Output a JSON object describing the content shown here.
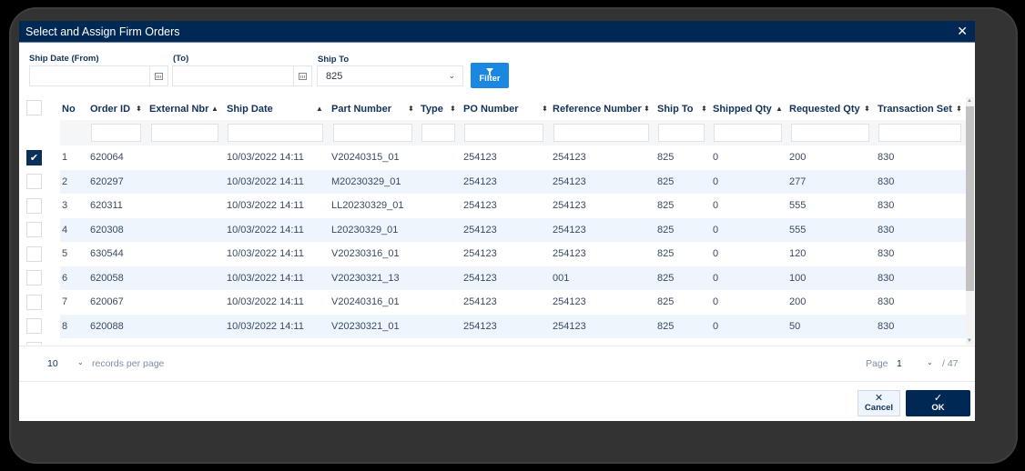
{
  "dialog": {
    "title": "Select and Assign Firm Orders",
    "close_icon": "close-icon"
  },
  "filters": {
    "ship_date_from_label": "Ship Date (From)",
    "ship_date_from_value": "",
    "ship_date_to_label": "(To)",
    "ship_date_to_value": "",
    "ship_to_label": "Ship To",
    "ship_to_value": "825",
    "filter_button_label": "Filter"
  },
  "table": {
    "columns": [
      {
        "label": "No",
        "sort": ""
      },
      {
        "label": "Order ID",
        "sort": "both"
      },
      {
        "label": "External Nbr",
        "sort": "asc"
      },
      {
        "label": "Ship Date",
        "sort": "asc"
      },
      {
        "label": "Part Number",
        "sort": "both"
      },
      {
        "label": "Type",
        "sort": "both"
      },
      {
        "label": "PO Number",
        "sort": "both"
      },
      {
        "label": "Reference Number",
        "sort": "both"
      },
      {
        "label": "Ship To",
        "sort": "both"
      },
      {
        "label": "Shipped Qty",
        "sort": "asc"
      },
      {
        "label": "Requested Qty",
        "sort": "both"
      },
      {
        "label": "Transaction Set",
        "sort": "both"
      }
    ],
    "rows": [
      {
        "checked": true,
        "no": "1",
        "order_id": "620064",
        "external_nbr": "",
        "ship_date": "10/03/2022 14:11",
        "part_number": "V20240315_01",
        "type": "",
        "po_number": "254123",
        "reference_number": "254123",
        "ship_to": "825",
        "shipped_qty": "0",
        "requested_qty": "200",
        "transaction_set": "830"
      },
      {
        "checked": false,
        "no": "2",
        "order_id": "620297",
        "external_nbr": "",
        "ship_date": "10/03/2022 14:11",
        "part_number": "M20230329_01",
        "type": "",
        "po_number": "254123",
        "reference_number": "254123",
        "ship_to": "825",
        "shipped_qty": "0",
        "requested_qty": "277",
        "transaction_set": "830"
      },
      {
        "checked": false,
        "no": "3",
        "order_id": "620311",
        "external_nbr": "",
        "ship_date": "10/03/2022 14:11",
        "part_number": "LL20230329_01",
        "type": "",
        "po_number": "254123",
        "reference_number": "254123",
        "ship_to": "825",
        "shipped_qty": "0",
        "requested_qty": "555",
        "transaction_set": "830"
      },
      {
        "checked": false,
        "no": "4",
        "order_id": "620308",
        "external_nbr": "",
        "ship_date": "10/03/2022 14:11",
        "part_number": "L20230329_01",
        "type": "",
        "po_number": "254123",
        "reference_number": "254123",
        "ship_to": "825",
        "shipped_qty": "0",
        "requested_qty": "555",
        "transaction_set": "830"
      },
      {
        "checked": false,
        "no": "5",
        "order_id": "630544",
        "external_nbr": "",
        "ship_date": "10/03/2022 14:11",
        "part_number": "V20230316_01",
        "type": "",
        "po_number": "254123",
        "reference_number": "254123",
        "ship_to": "825",
        "shipped_qty": "0",
        "requested_qty": "120",
        "transaction_set": "830"
      },
      {
        "checked": false,
        "no": "6",
        "order_id": "620058",
        "external_nbr": "",
        "ship_date": "10/03/2022 14:11",
        "part_number": "V20230321_13",
        "type": "",
        "po_number": "254123",
        "reference_number": "001",
        "ship_to": "825",
        "shipped_qty": "0",
        "requested_qty": "100",
        "transaction_set": "830"
      },
      {
        "checked": false,
        "no": "7",
        "order_id": "620067",
        "external_nbr": "",
        "ship_date": "10/03/2022 14:11",
        "part_number": "V20240316_01",
        "type": "",
        "po_number": "254123",
        "reference_number": "254123",
        "ship_to": "825",
        "shipped_qty": "0",
        "requested_qty": "200",
        "transaction_set": "830"
      },
      {
        "checked": false,
        "no": "8",
        "order_id": "620088",
        "external_nbr": "",
        "ship_date": "10/03/2022 14:11",
        "part_number": "V20230321_01",
        "type": "",
        "po_number": "254123",
        "reference_number": "254123",
        "ship_to": "825",
        "shipped_qty": "0",
        "requested_qty": "50",
        "transaction_set": "830"
      }
    ]
  },
  "pager": {
    "per_page": "10",
    "per_page_label": "records per page",
    "page_label": "Page",
    "page_value": "1",
    "page_total": "/ 47"
  },
  "footer": {
    "cancel_label": "Cancel",
    "ok_label": "OK"
  },
  "colors": {
    "titlebar": "#002854",
    "filter_button": "#1a88e0",
    "ok_button": "#002854",
    "alt_row": "#eef5fd"
  }
}
